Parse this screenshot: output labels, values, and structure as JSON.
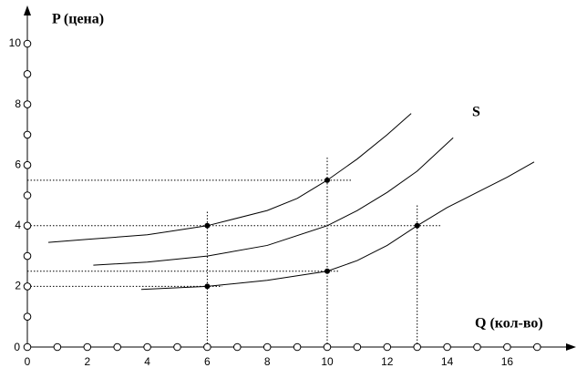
{
  "chart_data": {
    "type": "line",
    "y_label": "P (цена)",
    "x_label": "Q (кол-во)",
    "annotation": "S",
    "xlim": [
      0,
      18
    ],
    "ylim": [
      0,
      11
    ],
    "xticks": [
      0,
      2,
      4,
      6,
      8,
      10,
      12,
      14,
      16
    ],
    "xminorticks": [
      1,
      3,
      5,
      7,
      9,
      11,
      13,
      15,
      17
    ],
    "yticks": [
      0,
      2,
      4,
      6,
      8,
      10
    ],
    "yminorticks": [
      1,
      3,
      5,
      7,
      9
    ],
    "color": "#000000",
    "series": [
      {
        "x": [
          0.7,
          2,
          4,
          6,
          8,
          9,
          10,
          11,
          12,
          12.8
        ],
        "values": [
          3.45,
          3.55,
          3.7,
          4,
          4.5,
          4.9,
          5.5,
          6.2,
          7,
          7.7
        ]
      },
      {
        "x": [
          2.2,
          4,
          6,
          8,
          10,
          11,
          12,
          13,
          14.2
        ],
        "values": [
          2.7,
          2.8,
          3,
          3.35,
          4,
          4.5,
          5.1,
          5.8,
          6.9
        ]
      },
      {
        "x": [
          3.8,
          6,
          8,
          10,
          11,
          12,
          13,
          14,
          15,
          16,
          16.9
        ],
        "values": [
          1.9,
          2,
          2.2,
          2.5,
          2.85,
          3.35,
          4,
          4.6,
          5.1,
          5.6,
          6.1
        ]
      }
    ],
    "points": {
      "x": [
        6,
        10,
        13,
        6,
        10
      ],
      "values": [
        4,
        5.5,
        4,
        2,
        2.5
      ]
    },
    "hguides": [
      {
        "y": 5.5,
        "x_end": 10.8
      },
      {
        "y": 4,
        "x_end": 13.8
      },
      {
        "y": 2.5,
        "x_end": 10.4
      },
      {
        "y": 2,
        "x_end": 6.5
      }
    ],
    "vguides": [
      {
        "x": 6,
        "y_end": 4.5
      },
      {
        "x": 10,
        "y_end": 6.3
      },
      {
        "x": 13,
        "y_end": 4.7
      }
    ]
  }
}
